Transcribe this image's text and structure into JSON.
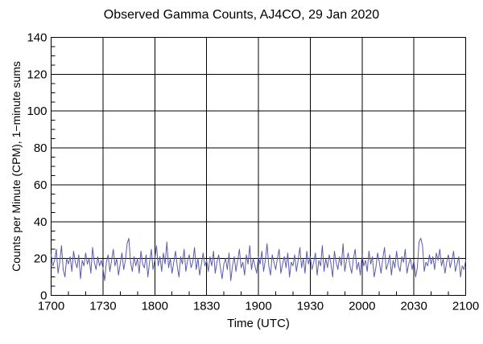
{
  "title": "Observed Gamma Counts, AJ4CO, 29 Jan 2020",
  "chart_data": {
    "type": "line",
    "title": "Observed Gamma Counts, AJ4CO, 29 Jan 2020",
    "xlabel": "Time (UTC)",
    "ylabel": "Counts per Minute (CPM), 1−minute sums",
    "x_tick_labels": [
      "1700",
      "1730",
      "1800",
      "1830",
      "1900",
      "1930",
      "2000",
      "2030",
      "2100"
    ],
    "x_major_minutes": [
      0,
      30,
      60,
      90,
      120,
      150,
      180,
      210,
      240
    ],
    "x_minor_step_minutes": 10,
    "xlim_minutes": [
      0,
      240
    ],
    "y_ticks": [
      0,
      20,
      40,
      60,
      80,
      100,
      120,
      140
    ],
    "y_minor_step": 5,
    "ylim": [
      0,
      140
    ],
    "grid": true,
    "legend": "none",
    "axis_color": "#000000",
    "line_color": "#5b5bad",
    "background": "#ffffff",
    "x_start_label": "1700",
    "sample_interval_minutes": 1,
    "values": [
      22,
      16,
      19,
      25,
      12,
      18,
      27,
      14,
      10,
      20,
      17,
      21,
      13,
      24,
      18,
      15,
      22,
      9,
      19,
      16,
      23,
      17,
      20,
      12,
      26,
      18,
      14,
      21,
      16,
      19,
      15,
      8,
      18,
      22,
      13,
      19,
      25,
      16,
      20,
      11,
      17,
      23,
      14,
      19,
      28,
      31,
      18,
      13,
      21,
      16,
      20,
      12,
      24,
      17,
      15,
      22,
      10,
      18,
      25,
      14,
      19,
      27,
      16,
      21,
      13,
      23,
      17,
      29,
      15,
      20,
      12,
      18,
      24,
      16,
      10,
      21,
      17,
      25,
      13,
      19,
      22,
      15,
      18,
      26,
      14,
      20,
      11,
      17,
      23,
      16,
      19,
      13,
      21,
      16,
      24,
      12,
      18,
      22,
      15,
      9,
      17,
      20,
      14,
      23,
      8,
      16,
      21,
      13,
      19,
      25,
      15,
      18,
      11,
      22,
      17,
      27,
      14,
      20,
      16,
      12,
      21,
      17,
      24,
      13,
      19,
      28,
      16,
      11,
      22,
      18,
      14,
      20,
      25,
      12,
      17,
      21,
      15,
      23,
      10,
      18,
      16,
      22,
      13,
      19,
      26,
      15,
      20,
      12,
      24,
      17,
      21,
      14,
      18,
      23,
      11,
      19,
      16,
      27,
      13,
      20,
      15,
      22,
      17,
      10,
      24,
      18,
      14,
      21,
      16,
      28,
      13,
      19,
      23,
      16,
      12,
      20,
      25,
      14,
      18,
      11,
      22,
      16,
      19,
      13,
      24,
      17,
      21,
      10,
      15,
      23,
      18,
      12,
      20,
      26,
      14,
      17,
      22,
      11,
      19,
      15,
      24,
      16,
      13,
      21,
      18,
      25,
      12,
      17,
      20,
      14,
      19,
      10,
      15,
      29,
      31,
      27,
      13,
      18,
      16,
      22,
      17,
      21,
      14,
      23,
      19,
      25,
      16,
      20,
      12,
      18,
      22,
      15,
      19,
      24,
      13,
      17,
      21,
      10,
      16,
      14,
      19
    ]
  }
}
